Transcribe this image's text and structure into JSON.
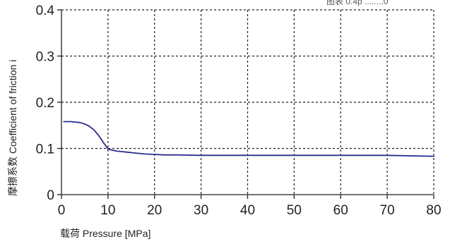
{
  "chart_data": {
    "type": "line",
    "title": "",
    "xlabel": "载荷 Pressure [MPa]",
    "ylabel": "摩擦系数 Coefficient of friction i",
    "corner_note": "图表 0.4p ........0",
    "xlim": [
      0,
      80
    ],
    "ylim": [
      0,
      0.4
    ],
    "x_ticks": [
      "0",
      "10",
      "20",
      "30",
      "40",
      "50",
      "60",
      "70",
      "80"
    ],
    "x_tick_values": [
      0,
      10,
      20,
      30,
      40,
      50,
      60,
      70,
      80
    ],
    "y_ticks": [
      "0",
      "0.1",
      "0.2",
      "0.3",
      "0.4"
    ],
    "y_tick_values": [
      0,
      0.1,
      0.2,
      0.3,
      0.4
    ],
    "grid": true,
    "legend": "none",
    "series": [
      {
        "color": "#2b2b8c",
        "x": [
          0.5,
          2,
          4,
          5,
          6,
          7,
          8,
          9,
          10,
          11,
          12,
          14,
          16,
          18,
          20,
          22,
          25,
          30,
          40,
          50,
          60,
          70,
          80
        ],
        "y": [
          0.158,
          0.158,
          0.156,
          0.153,
          0.148,
          0.14,
          0.128,
          0.113,
          0.099,
          0.096,
          0.094,
          0.092,
          0.09,
          0.088,
          0.087,
          0.086,
          0.086,
          0.085,
          0.085,
          0.085,
          0.085,
          0.085,
          0.083
        ]
      }
    ]
  }
}
